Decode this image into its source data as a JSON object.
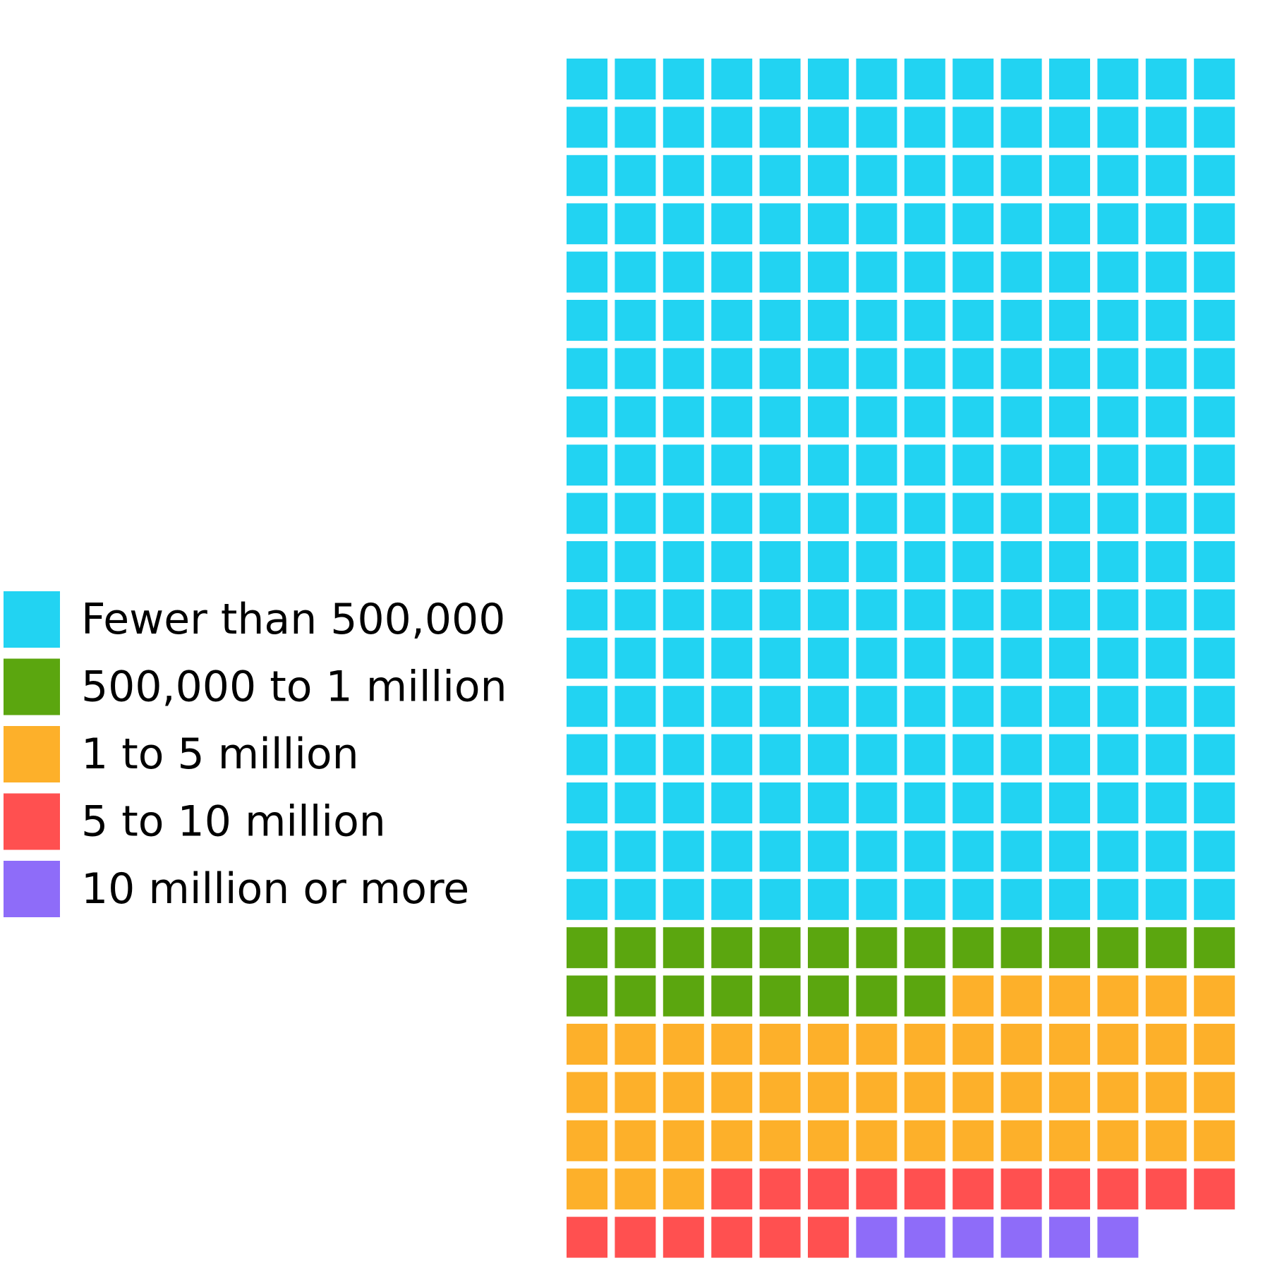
{
  "chart_data": {
    "type": "waffle",
    "title": "",
    "columns": 14,
    "fill_order": "row-major, top-left to bottom-right",
    "series": [
      {
        "name": "Fewer than 500,000",
        "value": 252,
        "color": "#22d3f2"
      },
      {
        "name": "500,000 to 1 million",
        "value": 22,
        "color": "#5ba60f"
      },
      {
        "name": "1 to 5 million",
        "value": 51,
        "color": "#fdb02a"
      },
      {
        "name": "5 to 10 million",
        "value": 17,
        "color": "#ff5050"
      },
      {
        "name": "10 million or more",
        "value": 6,
        "color": "#8e6cf9"
      }
    ],
    "legend_position": "left"
  }
}
